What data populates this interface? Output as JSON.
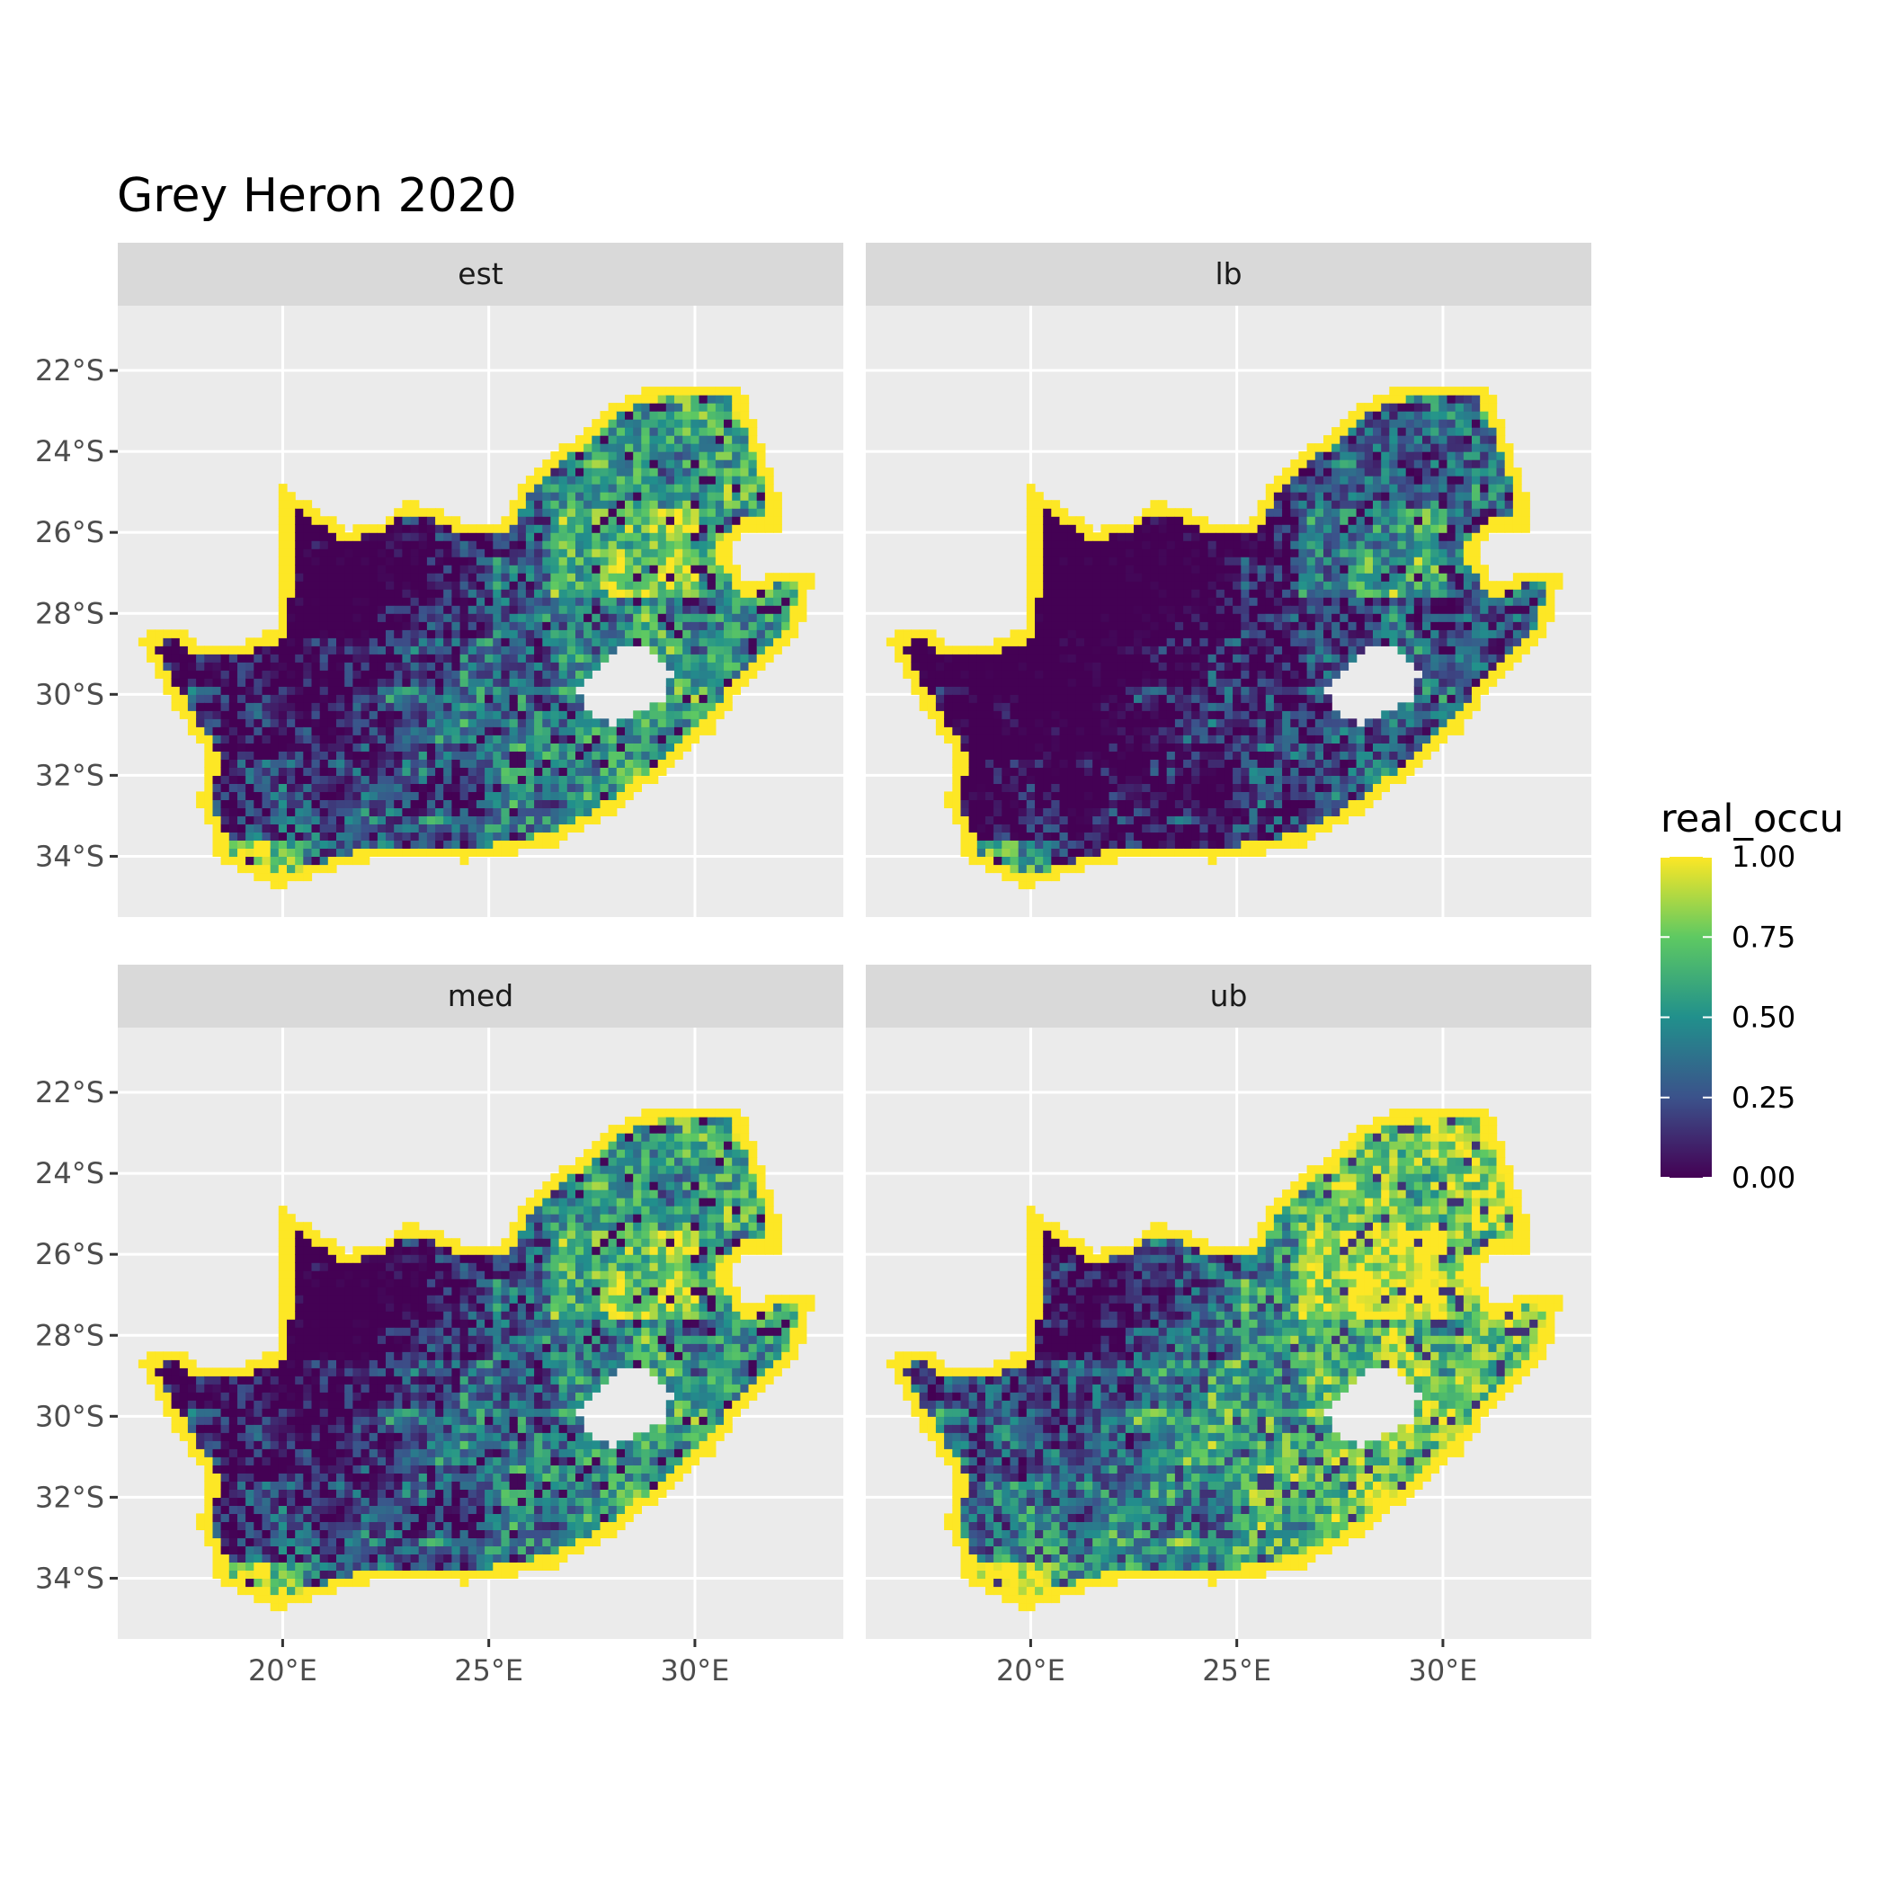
{
  "title": "Grey Heron 2020",
  "colors": {
    "panel_background": "#ebebeb",
    "grid": "#ffffff",
    "strip_background": "#d9d9d9",
    "viridis": [
      "#440154",
      "#3b528b",
      "#21908c",
      "#5ec962",
      "#fde725"
    ],
    "lesotho_hole": "#ffffff"
  },
  "map": {
    "x_ticks": [
      "20°E",
      "25°E",
      "30°E"
    ],
    "y_ticks": [
      "22°S",
      "24°S",
      "26°S",
      "28°S",
      "30°S",
      "32°S",
      "34°S"
    ],
    "lon_range": [
      16.0,
      33.6
    ],
    "lat_range": [
      -35.5,
      -20.4
    ],
    "panels": [
      {
        "label": "est",
        "mean_level": 0.5
      },
      {
        "label": "lb",
        "mean_level": 0.3
      },
      {
        "label": "med",
        "mean_level": 0.5
      },
      {
        "label": "ub",
        "mean_level": 0.68
      }
    ]
  },
  "legend": {
    "title": "real_occu",
    "labels": [
      "1.00",
      "0.75",
      "0.50",
      "0.25",
      "0.00"
    ],
    "values": [
      1.0,
      0.75,
      0.5,
      0.25,
      0.0
    ]
  }
}
